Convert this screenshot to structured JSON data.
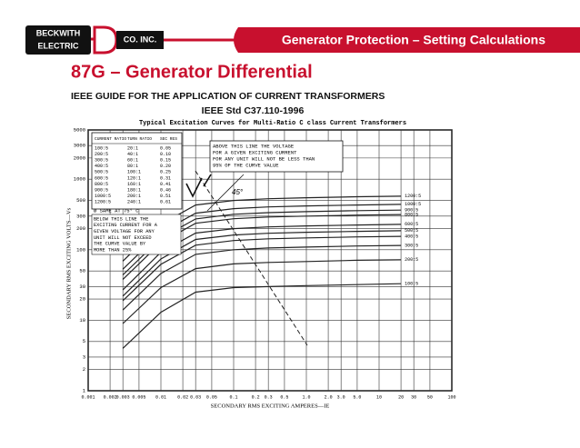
{
  "header": {
    "logo_top": "BECKWITH",
    "logo_bottom": "ELECTRIC",
    "logo_co": "CO. INC.",
    "banner": "Generator Protection – Setting Calculations"
  },
  "slide": {
    "title": "87G – Generator Differential",
    "subtitle_lines": [
      "IEEE GUIDE FOR THE APPLICATION OF CURRENT TRANSFORMERS",
      "IEEE Std C37.110-1996"
    ]
  },
  "chart_data": {
    "type": "line",
    "title": "Typical Excitation Curves for Multi-Ratio C class Current Transformers",
    "x_label": "SECONDARY RMS EXCITING AMPERES—IE",
    "y_label": "SECONDARY RMS EXCITING VOLTS—Vs",
    "log_x": true,
    "log_y": true,
    "grid": true,
    "xlim": [
      0.001,
      100
    ],
    "ylim": [
      1,
      5000
    ],
    "xticks": [
      0.001,
      0.002,
      0.003,
      0.005,
      0.01,
      0.02,
      0.03,
      0.05,
      0.1,
      0.2,
      0.3,
      0.5,
      {
        "value": 1,
        "label": "1.0"
      },
      {
        "value": 2,
        "label": "2.0"
      },
      {
        "value": 3,
        "label": "3.0"
      },
      {
        "value": 5,
        "label": "5.0"
      },
      10,
      20,
      30,
      50,
      100
    ],
    "yticks": [
      5000,
      3000,
      2000,
      1000,
      500,
      300,
      200,
      100,
      50,
      30,
      20,
      10,
      5,
      3,
      2,
      1
    ],
    "x": [
      0.003,
      0.01,
      0.03,
      0.1,
      0.3,
      1,
      5,
      20
    ],
    "series": [
      {
        "name": "1200:5",
        "color": "#222",
        "values": [
          69,
          230,
          431,
          500,
          529,
          546,
          564,
          575
        ]
      },
      {
        "name": "1000:5",
        "color": "#222",
        "values": [
          53,
          176,
          330,
          383,
          405,
          418,
          431,
          440
        ]
      },
      {
        "name": "900:5",
        "color": "#222",
        "values": [
          44,
          146,
          274,
          318,
          336,
          347,
          358,
          365
        ]
      },
      {
        "name": "800:5",
        "color": "#222",
        "values": [
          38,
          126,
          237,
          275,
          291,
          300,
          310,
          316
        ]
      },
      {
        "name": "600:5",
        "color": "#222",
        "values": [
          27,
          92,
          172,
          199,
          211,
          218,
          224,
          229
        ]
      },
      {
        "name": "500:5",
        "color": "#222",
        "values": [
          22,
          74,
          140,
          162,
          171,
          177,
          182,
          186
        ]
      },
      {
        "name": "400:5",
        "color": "#222",
        "values": [
          19,
          62,
          116,
          135,
          143,
          147,
          152,
          155
        ]
      },
      {
        "name": "300:5",
        "color": "#222",
        "values": [
          14,
          46,
          86,
          100,
          106,
          109,
          113,
          115
        ]
      },
      {
        "name": "200:5",
        "color": "#222",
        "values": [
          9,
          29,
          54,
          63,
          66,
          68,
          71,
          72
        ]
      },
      {
        "name": "100:5",
        "color": "#222",
        "values": [
          4,
          13,
          25,
          29,
          30,
          31,
          32,
          33
        ]
      }
    ],
    "table": {
      "headers": [
        "CURRENT RATIO",
        "TURN RATIO",
        "SEC RES"
      ],
      "rows": [
        [
          "100:5",
          "20:1",
          "0.05"
        ],
        [
          "200:5",
          "40:1",
          "0.10"
        ],
        [
          "300:5",
          "60:1",
          "0.15"
        ],
        [
          "400:5",
          "80:1",
          "0.20"
        ],
        [
          "500:5",
          "100:1",
          "0.25"
        ],
        [
          "600:5",
          "120:1",
          "0.31"
        ],
        [
          "800:5",
          "160:1",
          "0.41"
        ],
        [
          "900:5",
          "180:1",
          "0.46"
        ],
        [
          "1000:5",
          "200:1",
          "0.51"
        ],
        [
          "1200:5",
          "240:1",
          "0.61"
        ]
      ]
    },
    "annotations": {
      "above_lines": [
        "ABOVE THIS LINE THE VOLTAGE",
        "FOR A GIVEN EXCITING CURRENT",
        "FOR ANY UNIT WILL NOT BE LESS THAN",
        "95% OF THE CURVE VALUE"
      ],
      "temperature": "Ø SAME AT 75° C",
      "below_lines": [
        "BELOW THIS LINE THE",
        "EXCITING CURRENT FOR A",
        "GIVEN VOLTAGE FOR ANY",
        "UNIT WILL NOT EXCEED",
        "THE CURVE VALUE BY",
        "MORE THAN 25%"
      ],
      "angle": "45°"
    }
  }
}
